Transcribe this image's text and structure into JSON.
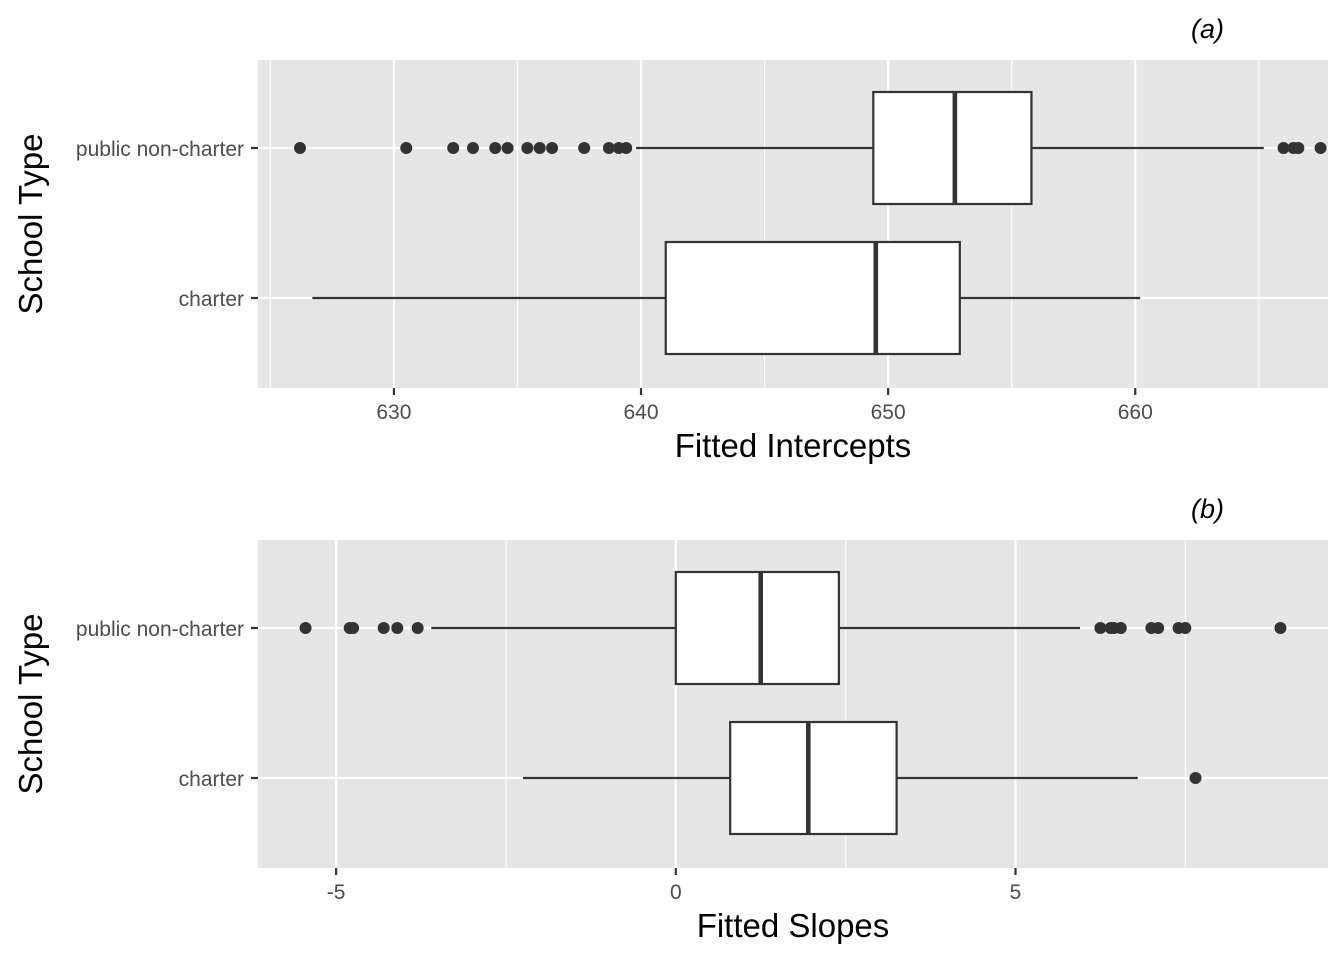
{
  "chart_data": [
    {
      "type": "boxplot",
      "panel_label": "(a)",
      "xlabel": "Fitted Intercepts",
      "ylabel": "School Type",
      "xlim": [
        624.5,
        667.8
      ],
      "x_ticks": [
        630,
        640,
        650,
        660
      ],
      "x_tick_labels": [
        "630",
        "640",
        "650",
        "660"
      ],
      "grid": true,
      "categories": [
        "public non-charter",
        "charter"
      ],
      "boxes": [
        {
          "category": "public non-charter",
          "whisker_low": 639.8,
          "q1": 649.4,
          "median": 652.7,
          "q3": 655.8,
          "whisker_high": 665.2,
          "outliers": [
            626.2,
            630.5,
            632.4,
            633.2,
            634.1,
            634.6,
            635.4,
            635.9,
            636.4,
            637.7,
            638.7,
            639.1,
            639.4,
            666.0,
            666.4,
            666.6,
            667.5
          ]
        },
        {
          "category": "charter",
          "whisker_low": 626.7,
          "q1": 641.0,
          "median": 649.5,
          "q3": 652.9,
          "whisker_high": 660.2,
          "outliers": []
        }
      ]
    },
    {
      "type": "boxplot",
      "panel_label": "(b)",
      "xlabel": "Fitted Slopes",
      "ylabel": "School Type",
      "xlim": [
        -6.15,
        9.6
      ],
      "x_ticks": [
        -5,
        0,
        5
      ],
      "x_tick_labels": [
        "-5",
        "0",
        "5"
      ],
      "grid": true,
      "categories": [
        "public non-charter",
        "charter"
      ],
      "boxes": [
        {
          "category": "public non-charter",
          "whisker_low": -3.6,
          "q1": 0.0,
          "median": 1.25,
          "q3": 2.4,
          "whisker_high": 5.95,
          "outliers": [
            -5.45,
            -4.8,
            -4.75,
            -4.3,
            -4.1,
            -3.8,
            6.25,
            6.4,
            6.45,
            6.55,
            7.0,
            7.1,
            7.4,
            7.5,
            8.9
          ]
        },
        {
          "category": "charter",
          "whisker_low": -2.25,
          "q1": 0.8,
          "median": 1.95,
          "q3": 3.25,
          "whisker_high": 6.8,
          "outliers": [
            7.65
          ]
        }
      ]
    }
  ]
}
